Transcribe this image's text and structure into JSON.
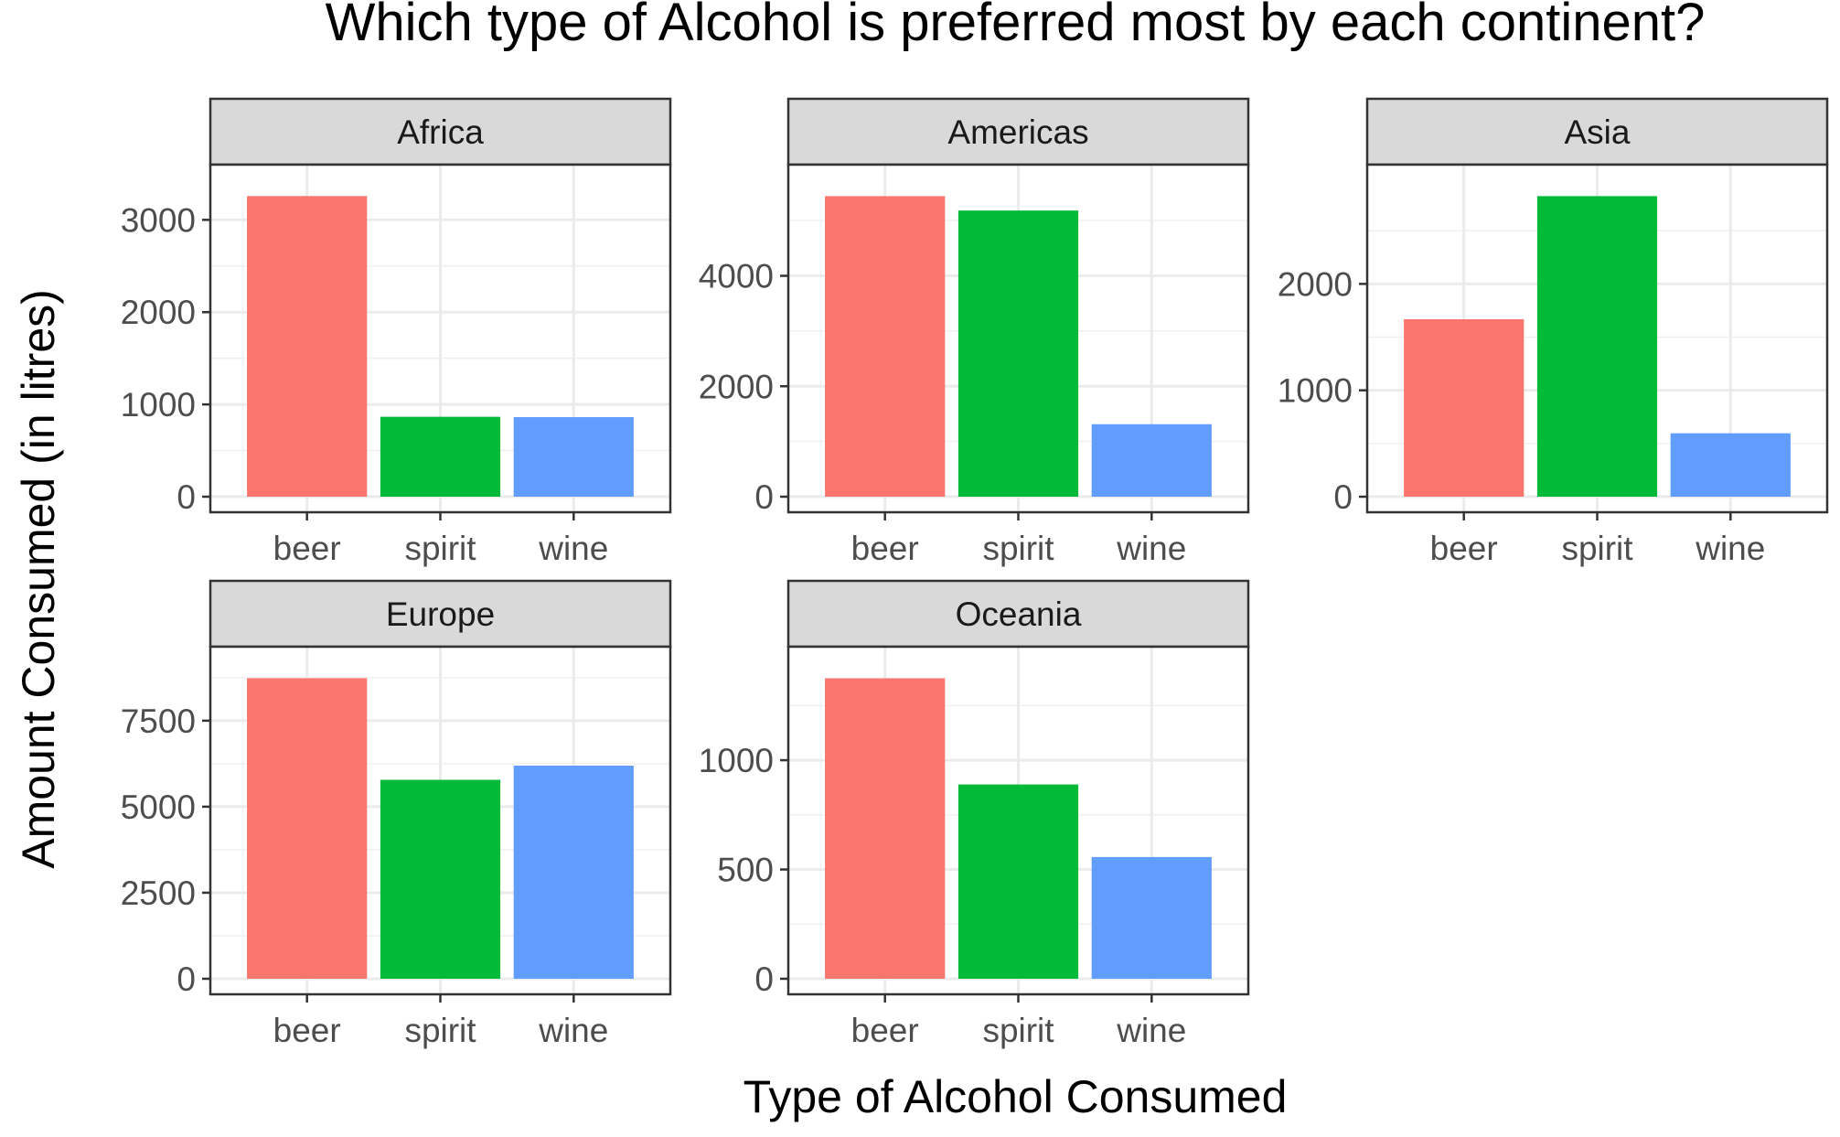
{
  "chart_data": {
    "type": "bar",
    "title": "Which type of Alcohol is preferred most by each continent?",
    "xlabel": "Type of Alcohol Consumed",
    "ylabel": "Amount Consumed (in litres)",
    "categories": [
      "beer",
      "spirit",
      "wine"
    ],
    "colors": [
      "#F8766D",
      "#00BA38",
      "#619CFF"
    ],
    "grid": true,
    "legend": "none",
    "facets": [
      {
        "name": "Africa",
        "values": [
          3258,
          866,
          862
        ],
        "ylim": [
          0,
          3420
        ],
        "y_ticks": [
          0,
          1000,
          2000,
          3000
        ],
        "y_tick_labels": [
          "0",
          "1000",
          "2000",
          "3000"
        ]
      },
      {
        "name": "Americas",
        "values": [
          5443,
          5182,
          1313
        ],
        "ylim": [
          0,
          5715
        ],
        "y_ticks": [
          0,
          2000,
          4000
        ],
        "y_tick_labels": [
          "0",
          "2000",
          "4000"
        ]
      },
      {
        "name": "Asia",
        "values": [
          1668,
          2825,
          596
        ],
        "ylim": [
          0,
          2966
        ],
        "y_ticks": [
          0,
          1000,
          2000
        ],
        "y_tick_labels": [
          "0",
          "1000",
          "2000"
        ]
      },
      {
        "name": "Europe",
        "values": [
          8734,
          5781,
          6193
        ],
        "ylim": [
          0,
          9171
        ],
        "y_ticks": [
          0,
          2500,
          5000,
          7500
        ],
        "y_tick_labels": [
          "0",
          "2500",
          "5000",
          "7500"
        ]
      },
      {
        "name": "Oceania",
        "values": [
          1375,
          889,
          557
        ],
        "ylim": [
          0,
          1444
        ],
        "y_ticks": [
          0,
          500,
          1000
        ],
        "y_tick_labels": [
          "0",
          "500",
          "1000"
        ]
      }
    ]
  }
}
